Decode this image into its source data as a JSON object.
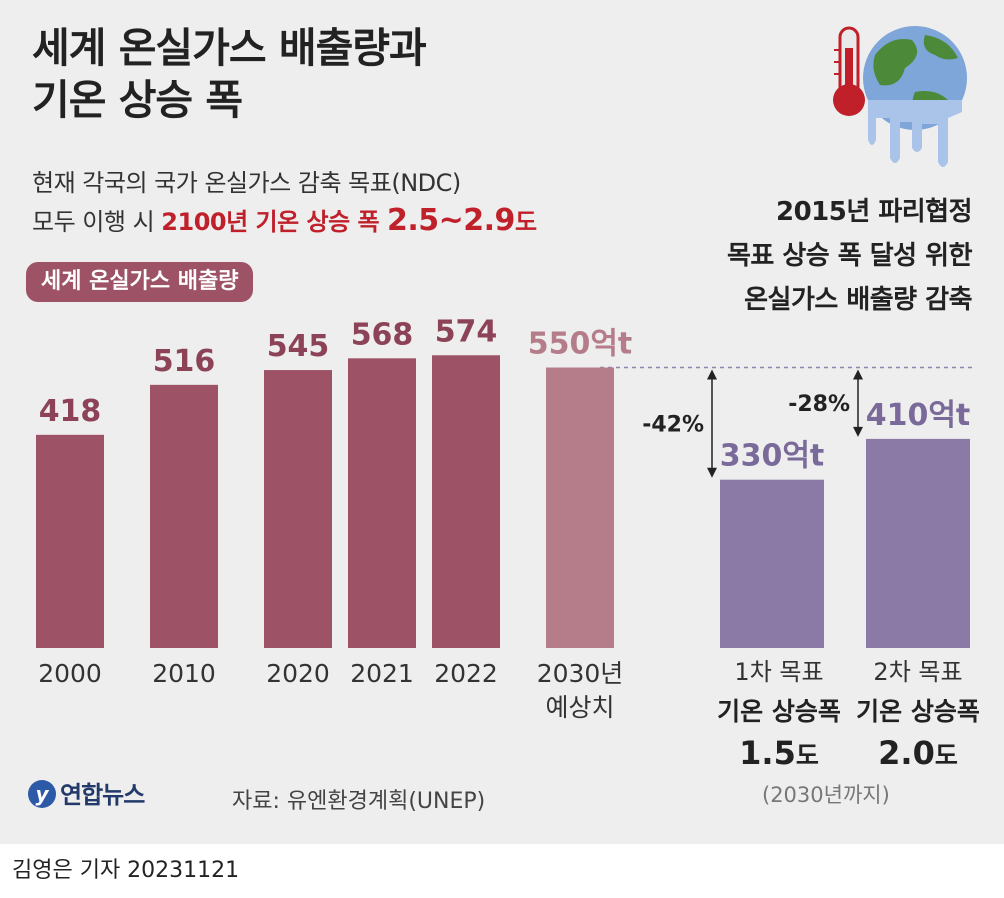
{
  "title": [
    "세계 온실가스 배출량과",
    "기온 상승 폭"
  ],
  "subtitle": {
    "line1": "현재 각국의 국가 온실가스 감축 목표(NDC)",
    "line2_prefix": "모두 이행 시 ",
    "line2_red": "2100년 기온 상승 폭 ",
    "line2_big": "2.5~2.9",
    "line2_suffix": "도"
  },
  "pill_label": "세계 온실가스 배출량",
  "right_heading": [
    "2015년 파리협정",
    "목표 상승 폭 달성 위한",
    "온실가스 배출량 감축"
  ],
  "colors": {
    "bar_history": "#9d5266",
    "bar_projection": "#b47d89",
    "bar_target": "#8b7aa6",
    "value_history": "#8d4357",
    "value_projection": "#b47d89",
    "value_target": "#7a6a9a",
    "accent_red": "#c0202a"
  },
  "chart_data": [
    {
      "type": "bar",
      "categories": [
        "2000",
        "2010",
        "2020",
        "2021",
        "2022",
        "2030년 예상치"
      ],
      "values": [
        418,
        516,
        545,
        568,
        574,
        550
      ],
      "labels": [
        "418",
        "516",
        "545",
        "568",
        "574",
        "550억t"
      ],
      "unit": "억t"
    },
    {
      "type": "bar",
      "categories": [
        "1차 목표 기온 상승폭 1.5도",
        "2차 목표 기온 상승폭 2.0도"
      ],
      "values": [
        330,
        410
      ],
      "labels": [
        "330억t",
        "410억t"
      ],
      "reductions": [
        "-42%",
        "-28%"
      ],
      "unit": "억t"
    }
  ],
  "targets": [
    {
      "line1": "1차 목표",
      "line2": "기온 상승폭",
      "value": "1.5",
      "unit": "도"
    },
    {
      "line1": "2차 목표",
      "line2": "기온 상승폭",
      "value": "2.0",
      "unit": "도"
    }
  ],
  "period_note": "(2030년까지)",
  "logo_text": "연합뉴스",
  "source": "자료: 유엔환경계획(UNEP)",
  "byline": "김영은 기자  20231121",
  "icons": [
    "thermometer-icon",
    "melting-globe-icon"
  ]
}
